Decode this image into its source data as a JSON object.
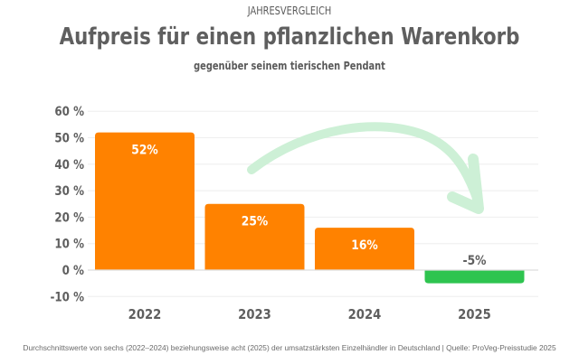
{
  "header": {
    "kicker": "JAHRESVERGLEICH",
    "title": "Aufpreis für einen pflanzlichen Warenkorb",
    "subtitle": "gegenüber seinem tierischen Pendant"
  },
  "footer": {
    "note": "Durchschnittswerte von sechs (2022–2024) beziehungsweise acht (2025) der umsatzstärksten Einzelhändler in Deutschland | Quelle: ProVeg-Preisstudie 2025"
  },
  "colors": {
    "positive": "#ff8200",
    "negative": "#2ec44f",
    "arrow": "#cdf0d6",
    "grid": "#eeeeee",
    "text": "#5f5f5f"
  },
  "decorations": {
    "trend_arrow": "curved-down-arrow-icon"
  },
  "chart_data": {
    "type": "bar",
    "title": "Aufpreis für einen pflanzlichen Warenkorb",
    "subtitle": "gegenüber seinem tierischen Pendant",
    "xlabel": "",
    "ylabel": "",
    "categories": [
      "2022",
      "2023",
      "2024",
      "2025"
    ],
    "values": [
      52,
      25,
      16,
      -5
    ],
    "data_labels": [
      "52%",
      "25%",
      "16%",
      "-5%"
    ],
    "ylim": [
      -10,
      60
    ],
    "yticks": [
      60,
      50,
      40,
      30,
      20,
      10,
      0,
      -10
    ],
    "ytick_labels": [
      "60 %",
      "50 %",
      "40 %",
      "30 %",
      "20 %",
      "10 %",
      "0 %",
      "-10 %"
    ],
    "grid": true,
    "legend": "none"
  }
}
